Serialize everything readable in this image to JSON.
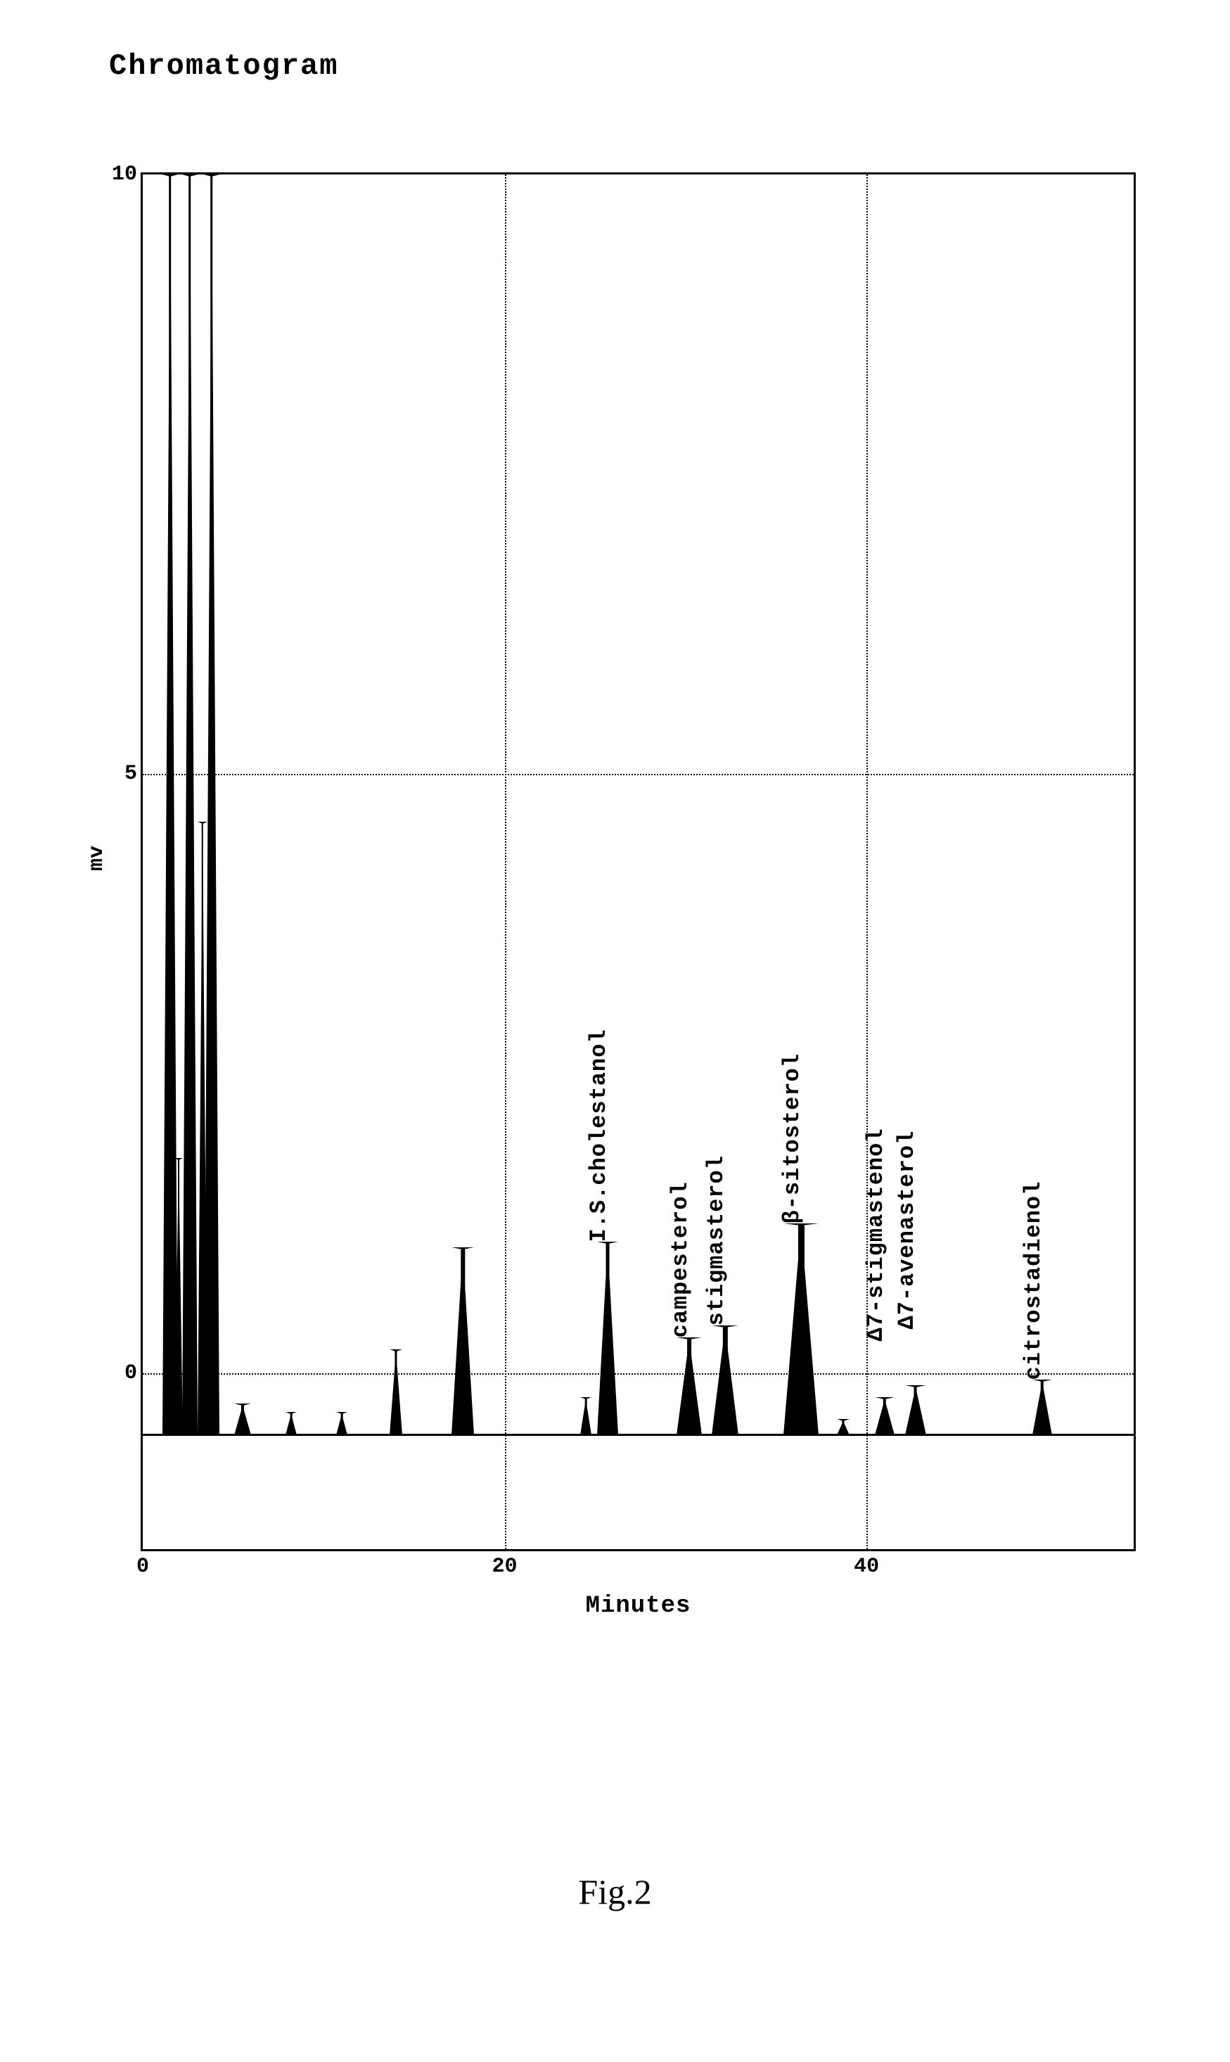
{
  "title": "Chromatogram",
  "caption": "Fig.2",
  "chart": {
    "type": "line",
    "xlabel": "Minutes",
    "ylabel": "mv",
    "xlim": [
      0,
      55
    ],
    "ylim": [
      -1.5,
      10
    ],
    "x_ticks": [
      0,
      20,
      40
    ],
    "y_ticks": [
      0,
      5,
      10
    ],
    "grid_x": [
      20,
      40
    ],
    "grid_y": [
      0,
      5
    ],
    "baseline_y": -0.5,
    "border_color": "#000000",
    "grid_color": "#000000",
    "background_color": "#ffffff",
    "title_fontsize": 42,
    "label_fontsize": 34,
    "tick_fontsize": 30,
    "peak_label_fontsize": 32,
    "peaks": [
      {
        "x": 1.5,
        "height": 10.5,
        "width_min": 0.4,
        "fill": "#000000",
        "label": ""
      },
      {
        "x": 2.0,
        "height": 2.3,
        "width_min": 0.22,
        "fill": "#000000",
        "label": ""
      },
      {
        "x": 2.6,
        "height": 10.5,
        "width_min": 0.4,
        "fill": "#000000",
        "label": ""
      },
      {
        "x": 3.3,
        "height": 5.1,
        "width_min": 0.28,
        "fill": "#000000",
        "label": ""
      },
      {
        "x": 3.8,
        "height": 10.5,
        "width_min": 0.4,
        "fill": "#000000",
        "label": ""
      },
      {
        "x": 5.5,
        "height": 0.25,
        "width_min": 0.45,
        "fill": "#000000",
        "label": ""
      },
      {
        "x": 8.2,
        "height": 0.18,
        "width_min": 0.3,
        "fill": "#000000",
        "label": ""
      },
      {
        "x": 11.0,
        "height": 0.18,
        "width_min": 0.3,
        "fill": "#000000",
        "label": ""
      },
      {
        "x": 14.0,
        "height": 0.7,
        "width_min": 0.35,
        "fill": "#000000",
        "label": ""
      },
      {
        "x": 17.7,
        "height": 1.55,
        "width_min": 0.6,
        "fill": "#000000",
        "label": ""
      },
      {
        "x": 24.5,
        "height": 0.3,
        "width_min": 0.3,
        "fill": "#000000",
        "label": ""
      },
      {
        "x": 25.7,
        "height": 1.6,
        "width_min": 0.55,
        "fill": "#000000",
        "label": "I.S.cholestanol"
      },
      {
        "x": 30.2,
        "height": 0.8,
        "width_min": 0.65,
        "fill": "#000000",
        "label": "campesterol"
      },
      {
        "x": 32.2,
        "height": 0.9,
        "width_min": 0.7,
        "fill": "#000000",
        "label": "stigmasterol"
      },
      {
        "x": 36.4,
        "height": 1.75,
        "width_min": 0.9,
        "fill": "#000000",
        "label": "β-sitosterol"
      },
      {
        "x": 38.7,
        "height": 0.12,
        "width_min": 0.35,
        "fill": "#000000",
        "label": ""
      },
      {
        "x": 41.0,
        "height": 0.3,
        "width_min": 0.5,
        "fill": "#000000",
        "label": "Δ7-stigmastenol",
        "label_offset_y": 80
      },
      {
        "x": 42.7,
        "height": 0.4,
        "width_min": 0.55,
        "fill": "#000000",
        "label": "Δ7-avenasterol",
        "label_offset_y": 80
      },
      {
        "x": 49.7,
        "height": 0.45,
        "width_min": 0.5,
        "fill": "#000000",
        "label": "citrostadienol"
      }
    ]
  }
}
